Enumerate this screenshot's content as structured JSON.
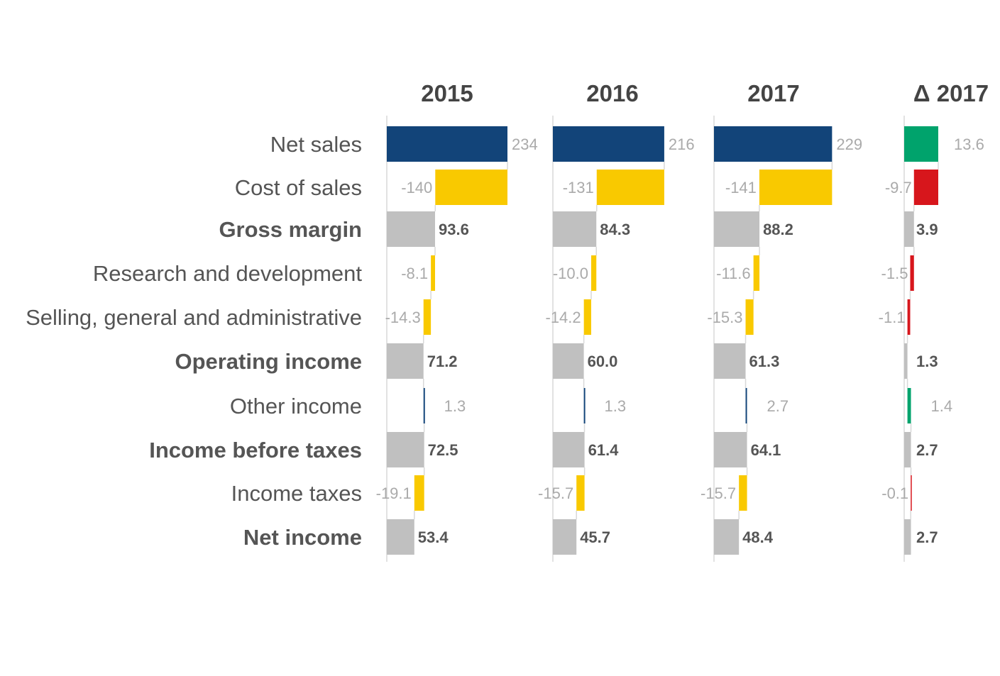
{
  "chart_data": {
    "type": "bar",
    "title": "",
    "rows": [
      {
        "label": "Net sales",
        "kind": "start",
        "bold": false
      },
      {
        "label": "Cost of sales",
        "kind": "delta",
        "bold": false
      },
      {
        "label": "Gross margin",
        "kind": "total",
        "bold": true
      },
      {
        "label": "Research and development",
        "kind": "delta",
        "bold": false
      },
      {
        "label": "Selling, general and administrative",
        "kind": "delta",
        "bold": false
      },
      {
        "label": "Operating income",
        "kind": "total",
        "bold": true
      },
      {
        "label": "Other income",
        "kind": "delta",
        "bold": false
      },
      {
        "label": "Income before taxes",
        "kind": "total",
        "bold": true
      },
      {
        "label": "Income taxes",
        "kind": "delta",
        "bold": false
      },
      {
        "label": "Net income",
        "kind": "total",
        "bold": true
      }
    ],
    "columns": [
      {
        "name": "2015",
        "type": "year",
        "values": [
          234,
          -140,
          93.6,
          -8.1,
          -14.3,
          71.2,
          1.3,
          72.5,
          -19.1,
          53.4
        ],
        "value_labels": [
          "234",
          "-140",
          "93.6",
          "-8.1",
          "-14.3",
          "71.2",
          "1.3",
          "72.5",
          "-19.1",
          "53.4"
        ]
      },
      {
        "name": "2016",
        "type": "year",
        "values": [
          216,
          -131,
          84.3,
          -10.0,
          -14.2,
          60.0,
          1.3,
          61.4,
          -15.7,
          45.7
        ],
        "value_labels": [
          "216",
          "-131",
          "84.3",
          "-10.0",
          "-14.2",
          "60.0",
          "1.3",
          "61.4",
          "-15.7",
          "45.7"
        ]
      },
      {
        "name": "2017",
        "type": "year",
        "values": [
          229,
          -141,
          88.2,
          -11.6,
          -15.3,
          61.3,
          2.7,
          64.1,
          -15.7,
          48.4
        ],
        "value_labels": [
          "229",
          "-141",
          "88.2",
          "-11.6",
          "-15.3",
          "61.3",
          "2.7",
          "64.1",
          "-15.7",
          "48.4"
        ]
      },
      {
        "name": "Δ 2017",
        "type": "delta",
        "values": [
          13.6,
          -9.7,
          3.9,
          -1.5,
          -1.1,
          1.3,
          1.4,
          2.7,
          -0.1,
          2.7
        ],
        "value_labels": [
          "13.6",
          "-9.7",
          "3.9",
          "-1.5",
          "-1.1",
          "1.3",
          "1.4",
          "2.7",
          "-0.1",
          "2.7"
        ]
      }
    ],
    "colors": {
      "start": "#124479",
      "cost": "#f9c900",
      "income": "#124479",
      "total": "#c0c0c0",
      "positive": "#00a36c",
      "negative": "#d7161c",
      "delta_total": "#c0c0c0"
    }
  }
}
